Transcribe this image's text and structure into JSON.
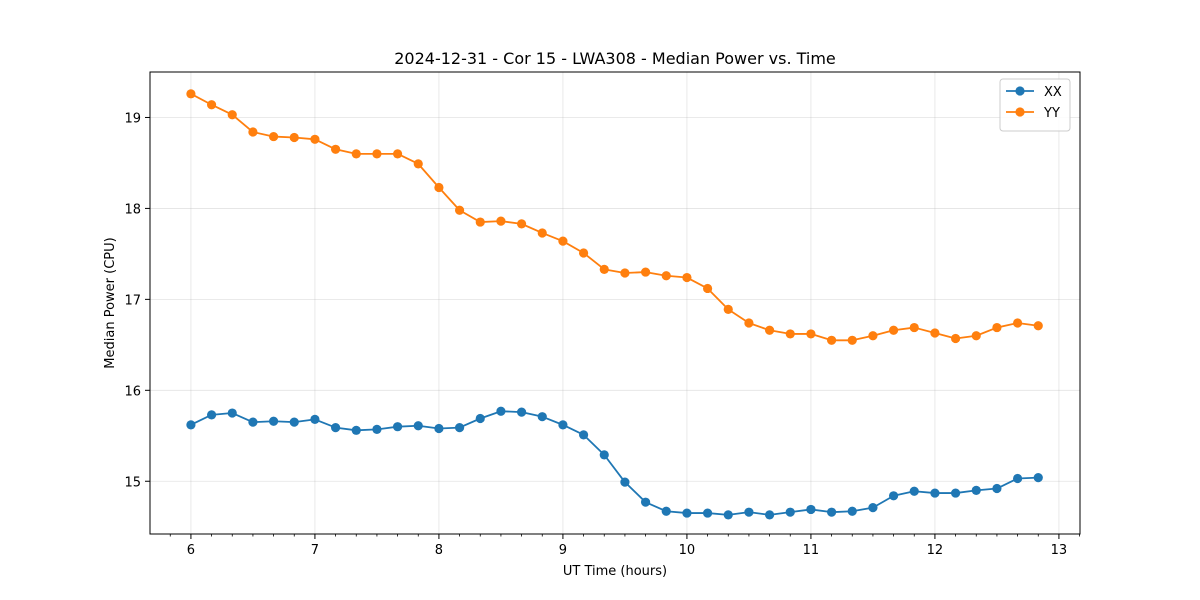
{
  "chart_data": {
    "type": "line",
    "title": "2024-12-31 - Cor 15 - LWA308 - Median Power vs. Time",
    "xlabel": "UT Time (hours)",
    "ylabel": "Median Power (CPU)",
    "xlim": [
      5.67,
      13.17
    ],
    "ylim": [
      14.42,
      19.5
    ],
    "xticks": [
      6,
      7,
      8,
      9,
      10,
      11,
      12,
      13
    ],
    "xtick_labels": [
      "6",
      "7",
      "8",
      "9",
      "10",
      "11",
      "12",
      "13"
    ],
    "yticks": [
      15,
      16,
      17,
      18,
      19
    ],
    "ytick_labels": [
      "15",
      "16",
      "17",
      "18",
      "19"
    ],
    "grid": true,
    "legend_position": "top-right",
    "x": [
      6.0,
      6.1667,
      6.3333,
      6.5,
      6.6667,
      6.8333,
      7.0,
      7.1667,
      7.3333,
      7.5,
      7.6667,
      7.8333,
      8.0,
      8.1667,
      8.3333,
      8.5,
      8.6667,
      8.8333,
      9.0,
      9.1667,
      9.3333,
      9.5,
      9.6667,
      9.8333,
      10.0,
      10.1667,
      10.3333,
      10.5,
      10.6667,
      10.8333,
      11.0,
      11.1667,
      11.3333,
      11.5,
      11.6667,
      11.8333,
      12.0,
      12.1667,
      12.3333,
      12.5,
      12.6667,
      12.8333
    ],
    "series": [
      {
        "name": "XX",
        "color": "#1f77b4",
        "values": [
          15.62,
          15.73,
          15.75,
          15.65,
          15.66,
          15.65,
          15.68,
          15.59,
          15.56,
          15.57,
          15.6,
          15.61,
          15.58,
          15.59,
          15.69,
          15.77,
          15.76,
          15.71,
          15.62,
          15.51,
          15.29,
          14.99,
          14.77,
          14.67,
          14.65,
          14.65,
          14.63,
          14.66,
          14.63,
          14.66,
          14.69,
          14.66,
          14.67,
          14.71,
          14.84,
          14.89,
          14.87,
          14.87,
          14.9,
          14.92,
          15.03,
          15.04
        ]
      },
      {
        "name": "YY",
        "color": "#ff7f0e",
        "values": [
          19.26,
          19.14,
          19.03,
          18.84,
          18.79,
          18.78,
          18.76,
          18.65,
          18.6,
          18.6,
          18.6,
          18.49,
          18.23,
          17.98,
          17.85,
          17.86,
          17.83,
          17.73,
          17.64,
          17.51,
          17.33,
          17.29,
          17.3,
          17.26,
          17.24,
          17.12,
          16.89,
          16.74,
          16.66,
          16.62,
          16.62,
          16.55,
          16.55,
          16.6,
          16.66,
          16.69,
          16.63,
          16.57,
          16.6,
          16.69,
          16.74,
          16.71
        ]
      }
    ]
  }
}
